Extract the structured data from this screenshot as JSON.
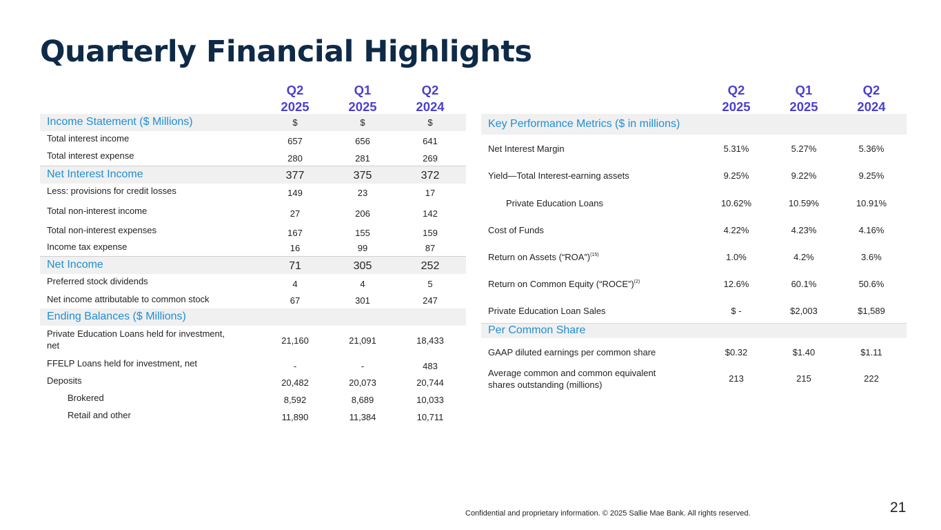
{
  "title": "Quarterly Financial Highlights",
  "left_headers": [
    {
      "q": "Q2",
      "y": "2025"
    },
    {
      "q": "Q1",
      "y": "2025"
    },
    {
      "q": "Q2",
      "y": "2024"
    }
  ],
  "right_headers": [
    {
      "q": "Q2",
      "y": "2025"
    },
    {
      "q": "Q1",
      "y": "2025"
    },
    {
      "q": "Q2",
      "y": "2024"
    }
  ],
  "income_statement": {
    "label": "Income Statement ($ Millions)",
    "values": [
      "$",
      "$",
      "$"
    ],
    "rows": [
      {
        "label": "Total interest income",
        "values": [
          "657",
          "656",
          "641"
        ]
      },
      {
        "label": "Total interest expense",
        "values": [
          "280",
          "281",
          "269"
        ]
      }
    ]
  },
  "net_interest_income": {
    "label": "Net Interest Income",
    "values": [
      "377",
      "375",
      "372"
    ],
    "rows": [
      {
        "label": "Less: provisions for credit losses",
        "values": [
          "149",
          "23",
          "17"
        ]
      },
      {
        "label": "Total non-interest income",
        "values": [
          "27",
          "206",
          "142"
        ]
      },
      {
        "label": "Total non-interest expenses",
        "values": [
          "167",
          "155",
          "159"
        ]
      },
      {
        "label": "Income tax expense",
        "values": [
          "16",
          "99",
          "87"
        ]
      }
    ]
  },
  "net_income": {
    "label": "Net Income",
    "values": [
      "71",
      "305",
      "252"
    ],
    "rows": [
      {
        "label": "Preferred stock dividends",
        "values": [
          "4",
          "4",
          "5"
        ]
      },
      {
        "label": "Net income attributable to common stock",
        "values": [
          "67",
          "301",
          "247"
        ]
      }
    ]
  },
  "ending_balances": {
    "label": "Ending Balances ($ Millions)",
    "rows": [
      {
        "label": "Private Education Loans held for investment,",
        "label2": "net",
        "values": [
          "21,160",
          "21,091",
          "18,433"
        ]
      },
      {
        "label": "FFELP Loans held for investment, net",
        "values": [
          "-",
          "-",
          "483"
        ]
      },
      {
        "label": "Deposits",
        "values": [
          "20,482",
          "20,073",
          "20,744"
        ]
      },
      {
        "label": "Brokered",
        "values": [
          "8,592",
          "8,689",
          "10,033"
        ]
      },
      {
        "label": "Retail and other",
        "values": [
          "11,890",
          "11,384",
          "10,711"
        ]
      }
    ]
  },
  "key_metrics": {
    "label": "Key Performance Metrics ($ in millions)",
    "rows": [
      {
        "label": "Net Interest Margin",
        "values": [
          "5.31%",
          "5.27%",
          "5.36%"
        ]
      },
      {
        "label": "Yield—Total Interest-earning assets",
        "values": [
          "9.25%",
          "9.22%",
          "9.25%"
        ]
      },
      {
        "label": "Private Education Loans",
        "values": [
          "10.62%",
          "10.59%",
          "10.91%"
        ]
      },
      {
        "label": "Cost of Funds",
        "values": [
          "4.22%",
          "4.23%",
          "4.16%"
        ]
      },
      {
        "label": "Return on Assets (“ROA”)",
        "sup": "(15)",
        "values": [
          "1.0%",
          "4.2%",
          "3.6%"
        ]
      },
      {
        "label": "Return on Common Equity (“ROCE”)",
        "sup": "(2)",
        "values": [
          "12.6%",
          "60.1%",
          "50.6%"
        ]
      },
      {
        "label": "Private Education Loan Sales",
        "values": [
          "$ -",
          "$2,003",
          "$1,589"
        ]
      }
    ]
  },
  "per_share": {
    "label": "Per Common Share",
    "rows": [
      {
        "label": "GAAP diluted earnings per common share",
        "values": [
          "$0.32",
          "$1.40",
          "$1.11"
        ]
      },
      {
        "label": "Average common and common equivalent",
        "label2": "shares outstanding (millions)",
        "values": [
          "213",
          "215",
          "222"
        ]
      }
    ]
  },
  "footer": "Confidential and proprietary information. © 2025 Sallie Mae Bank. All rights reserved.",
  "page_number": "21"
}
